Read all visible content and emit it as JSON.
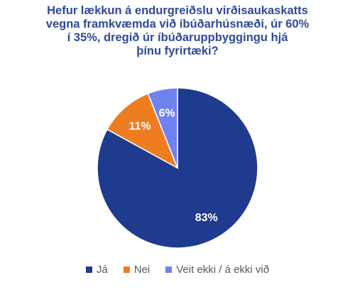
{
  "chart_data": {
    "type": "pie",
    "title_lines": [
      "Hefur lækkun á endurgreiðslu virðisaukaskatts",
      "vegna framkvæmda við íbúðarhúsnæði, úr 60%",
      "í 35%, dregið úr íbúðaruppbyggingu hjá",
      "þínu fyrirtæki?"
    ],
    "categories": [
      "Já",
      "Nei",
      "Veit ekki / á ekki við"
    ],
    "values": [
      83,
      11,
      6
    ],
    "labels": [
      "83%",
      "11%",
      "6%"
    ],
    "colors": [
      "#1f3b8f",
      "#ee7d22",
      "#6f82f0"
    ],
    "label_color": "#ffffff",
    "legend_position": "bottom",
    "start_angle_deg": 0,
    "direction": "clockwise"
  }
}
